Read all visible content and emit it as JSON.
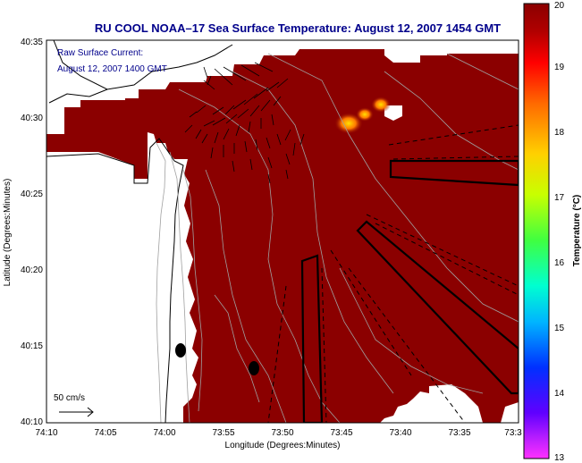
{
  "title": "RU COOL  NOAA–17  Sea Surface Temperature:  August 12, 2007 1454 GMT",
  "current_label": {
    "line1": "Raw Surface Current:",
    "line2": "August 12, 2007 1400 GMT"
  },
  "scale_label": "50 cm/s",
  "xlabel": "Longitude (Degrees:Minutes)",
  "ylabel": "Latitude (Degrees:Minutes)",
  "x_ticks": [
    "74:10",
    "74:05",
    "74:00",
    "73:55",
    "73:50",
    "73:45",
    "73:40",
    "73:35",
    "73:3"
  ],
  "y_ticks": [
    "40:35",
    "40:30",
    "40:25",
    "40:20",
    "40:15",
    "40:10"
  ],
  "colorbar": {
    "label": "Temperature (°C)",
    "ticks": [
      "20",
      "19",
      "18",
      "17",
      "16",
      "15",
      "14",
      "13"
    ],
    "min": 13,
    "max": 20
  },
  "colors": {
    "sst_main": "#8b0000",
    "title": "#00008b",
    "hot_spot": "#ff7a00"
  }
}
